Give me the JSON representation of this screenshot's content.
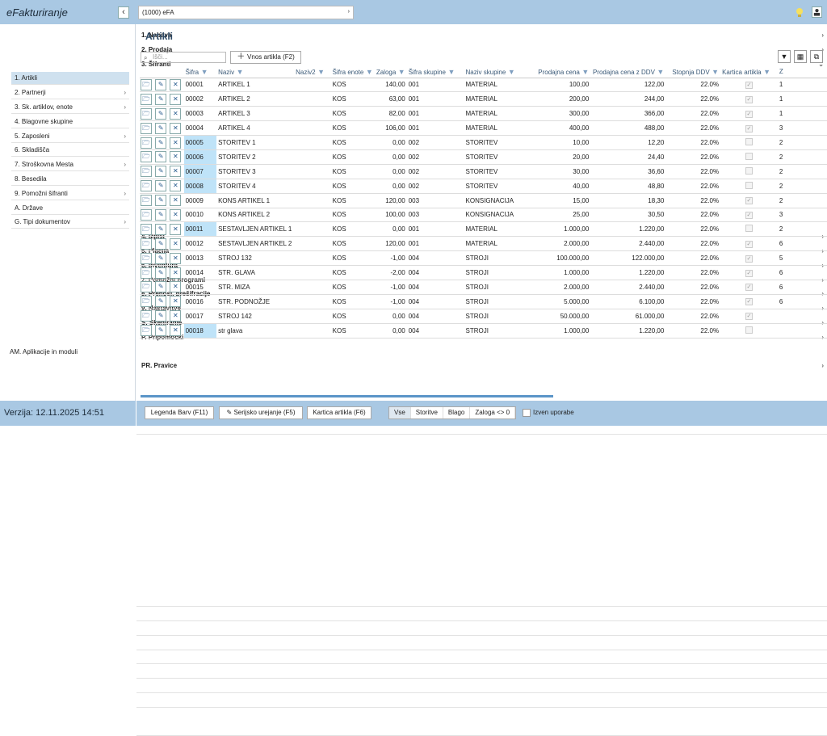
{
  "app": {
    "title": "eFakturiranje",
    "company": "(1000) eFA",
    "collapse": "‹"
  },
  "sidebar": {
    "items": [
      {
        "label": "1. Nabava",
        "type": "main",
        "chev": "›"
      },
      {
        "label": "2. Prodaja",
        "type": "main",
        "chev": "›"
      },
      {
        "label": "3. Šifranti",
        "type": "main",
        "chev": "⌄"
      },
      {
        "label": "1. Artikli",
        "type": "sub",
        "active": true
      },
      {
        "label": "2. Partnerji",
        "type": "sub",
        "chev": "›"
      },
      {
        "label": "3. Sk. artiklov, enote",
        "type": "sub",
        "chev": "›"
      },
      {
        "label": "4. Blagovne skupine",
        "type": "sub"
      },
      {
        "label": "5. Zaposleni",
        "type": "sub",
        "chev": "›"
      },
      {
        "label": "6. Skladišča",
        "type": "sub"
      },
      {
        "label": "7. Stroškovna Mesta",
        "type": "sub",
        "chev": "›"
      },
      {
        "label": "8. Besedila",
        "type": "sub"
      },
      {
        "label": "9. Pomožni šifranti",
        "type": "sub",
        "chev": "›"
      },
      {
        "label": "A. Države",
        "type": "sub"
      },
      {
        "label": "G. Tipi dokumentov",
        "type": "sub",
        "chev": "›"
      },
      {
        "label": "4. Izpisi",
        "type": "main",
        "chev": "›"
      },
      {
        "label": "5. Plačila",
        "type": "main",
        "chev": "›"
      },
      {
        "label": "6. Inventura",
        "type": "main",
        "chev": "›"
      },
      {
        "label": "7. Pomožni programi",
        "type": "main",
        "chev": "›"
      },
      {
        "label": "8. Prenosi, prešifracije",
        "type": "main",
        "chev": "›"
      },
      {
        "label": "9. Nastavitve",
        "type": "main",
        "chev": "›"
      },
      {
        "label": "S. Skeniranje",
        "type": "main",
        "chev": "›"
      },
      {
        "label": "P. Pripomočki",
        "type": "main",
        "chev": "›"
      },
      {
        "label": "AM. Aplikacije in moduli",
        "type": "plain"
      },
      {
        "label": "PR. Pravice",
        "type": "main",
        "chev": "›"
      }
    ],
    "version": "Verzija: 12.11.2025 14:51"
  },
  "main": {
    "title": "Artikli",
    "search_placeholder": "Išči...",
    "add_label": "Vnos artikla (F2)",
    "columns": [
      "Šifra",
      "Naziv",
      "Naziv2",
      "Šifra enote",
      "Zaloga",
      "Šifra skupine",
      "Naziv skupine",
      "Prodajna cena",
      "Prodajna cena z DDV",
      "Stopnja DDV",
      "Kartica artikla",
      "Z"
    ],
    "rows": [
      {
        "code": "00001",
        "name": "ARTIKEL 1",
        "unit": "KOS",
        "stock": "140,00",
        "grp": "001",
        "grpname": "MATERIAL",
        "price": "100,00",
        "pricevat": "122,00",
        "vat": "22.0%",
        "card": true,
        "last": "1",
        "hl": false
      },
      {
        "code": "00002",
        "name": "ARTIKEL 2",
        "unit": "KOS",
        "stock": "63,00",
        "grp": "001",
        "grpname": "MATERIAL",
        "price": "200,00",
        "pricevat": "244,00",
        "vat": "22.0%",
        "card": true,
        "last": "1",
        "hl": false
      },
      {
        "code": "00003",
        "name": "ARTIKEL 3",
        "unit": "KOS",
        "stock": "82,00",
        "grp": "001",
        "grpname": "MATERIAL",
        "price": "300,00",
        "pricevat": "366,00",
        "vat": "22.0%",
        "card": true,
        "last": "1",
        "hl": false
      },
      {
        "code": "00004",
        "name": "ARTIKEL 4",
        "unit": "KOS",
        "stock": "106,00",
        "grp": "001",
        "grpname": "MATERIAL",
        "price": "400,00",
        "pricevat": "488,00",
        "vat": "22.0%",
        "card": true,
        "last": "3",
        "hl": false
      },
      {
        "code": "00005",
        "name": "STORITEV 1",
        "unit": "KOS",
        "stock": "0,00",
        "grp": "002",
        "grpname": "STORITEV",
        "price": "10,00",
        "pricevat": "12,20",
        "vat": "22.0%",
        "card": false,
        "last": "2",
        "hl": true
      },
      {
        "code": "00006",
        "name": "STORITEV 2",
        "unit": "KOS",
        "stock": "0,00",
        "grp": "002",
        "grpname": "STORITEV",
        "price": "20,00",
        "pricevat": "24,40",
        "vat": "22.0%",
        "card": false,
        "last": "2",
        "hl": true
      },
      {
        "code": "00007",
        "name": "STORITEV 3",
        "unit": "KOS",
        "stock": "0,00",
        "grp": "002",
        "grpname": "STORITEV",
        "price": "30,00",
        "pricevat": "36,60",
        "vat": "22.0%",
        "card": false,
        "last": "2",
        "hl": true
      },
      {
        "code": "00008",
        "name": "STORITEV 4",
        "unit": "KOS",
        "stock": "0,00",
        "grp": "002",
        "grpname": "STORITEV",
        "price": "40,00",
        "pricevat": "48,80",
        "vat": "22.0%",
        "card": false,
        "last": "2",
        "hl": true
      },
      {
        "code": "00009",
        "name": "KONS ARTIKEL 1",
        "unit": "KOS",
        "stock": "120,00",
        "grp": "003",
        "grpname": "KONSIGNACIJA",
        "price": "15,00",
        "pricevat": "18,30",
        "vat": "22.0%",
        "card": true,
        "last": "2",
        "hl": false
      },
      {
        "code": "00010",
        "name": "KONS ARTIKEL 2",
        "unit": "KOS",
        "stock": "100,00",
        "grp": "003",
        "grpname": "KONSIGNACIJA",
        "price": "25,00",
        "pricevat": "30,50",
        "vat": "22.0%",
        "card": true,
        "last": "3",
        "hl": false
      },
      {
        "code": "00011",
        "name": "SESTAVLJEN ARTIKEL 1",
        "unit": "KOS",
        "stock": "0,00",
        "grp": "001",
        "grpname": "MATERIAL",
        "price": "1.000,00",
        "pricevat": "1.220,00",
        "vat": "22.0%",
        "card": false,
        "last": "2",
        "hl": true
      },
      {
        "code": "00012",
        "name": "SESTAVLJEN ARTIKEL 2",
        "unit": "KOS",
        "stock": "120,00",
        "grp": "001",
        "grpname": "MATERIAL",
        "price": "2.000,00",
        "pricevat": "2.440,00",
        "vat": "22.0%",
        "card": true,
        "last": "6",
        "hl": false
      },
      {
        "code": "00013",
        "name": "STROJ 132",
        "unit": "KOS",
        "stock": "-1,00",
        "grp": "004",
        "grpname": "STROJI",
        "price": "100.000,00",
        "pricevat": "122.000,00",
        "vat": "22.0%",
        "card": true,
        "last": "5",
        "hl": false
      },
      {
        "code": "00014",
        "name": "STR. GLAVA",
        "unit": "KOS",
        "stock": "-2,00",
        "grp": "004",
        "grpname": "STROJI",
        "price": "1.000,00",
        "pricevat": "1.220,00",
        "vat": "22.0%",
        "card": true,
        "last": "6",
        "hl": false
      },
      {
        "code": "00015",
        "name": "STR. MIZA",
        "unit": "KOS",
        "stock": "-1,00",
        "grp": "004",
        "grpname": "STROJI",
        "price": "2.000,00",
        "pricevat": "2.440,00",
        "vat": "22.0%",
        "card": true,
        "last": "6",
        "hl": false
      },
      {
        "code": "00016",
        "name": "STR. PODNOŽJE",
        "unit": "KOS",
        "stock": "-1,00",
        "grp": "004",
        "grpname": "STROJI",
        "price": "5.000,00",
        "pricevat": "6.100,00",
        "vat": "22.0%",
        "card": true,
        "last": "6",
        "hl": false
      },
      {
        "code": "00017",
        "name": "STROJ 142",
        "unit": "KOS",
        "stock": "0,00",
        "grp": "004",
        "grpname": "STROJI",
        "price": "50.000,00",
        "pricevat": "61.000,00",
        "vat": "22.0%",
        "card": true,
        "last": "",
        "hl": false
      },
      {
        "code": "00018",
        "name": "str glava",
        "unit": "KOS",
        "stock": "0,00",
        "grp": "004",
        "grpname": "STROJI",
        "price": "1.000,00",
        "pricevat": "1.220,00",
        "vat": "22.0%",
        "card": false,
        "last": "",
        "hl": true
      }
    ]
  },
  "footer": {
    "legend": "Legenda Barv (F11)",
    "serial": "Serijsko urejanje (F5)",
    "card": "Kartica artikla (F6)",
    "filters": [
      "Vse",
      "Storitve",
      "Blago",
      "Zaloga <> 0"
    ],
    "active_filter": "Vse",
    "unused": "Izven uporabe"
  },
  "colors": {
    "accent": "#a9c8e3",
    "highlight": "#bfe3f8",
    "header_text": "#3b5a78"
  }
}
